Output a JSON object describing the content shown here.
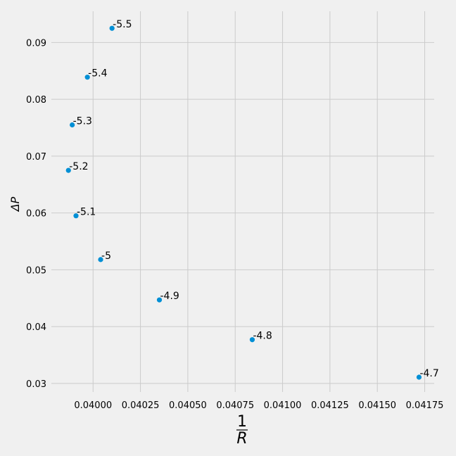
{
  "chart_data": {
    "type": "scatter",
    "xlabel": {
      "numerator": "1",
      "denominator": "R"
    },
    "ylabel": "ΔP",
    "xlim": [
      0.03978,
      0.0418
    ],
    "ylim": [
      0.0285,
      0.0955
    ],
    "grid": true,
    "x_ticks": [
      0.04,
      0.04025,
      0.0405,
      0.04075,
      0.041,
      0.04125,
      0.0415,
      0.04175
    ],
    "x_tick_labels": [
      "0.04000",
      "0.04025",
      "0.04050",
      "0.04075",
      "0.04100",
      "0.04125",
      "0.04150",
      "0.04175"
    ],
    "y_ticks": [
      0.03,
      0.04,
      0.05,
      0.06,
      0.07,
      0.08,
      0.09
    ],
    "y_tick_labels": [
      "0.03",
      "0.04",
      "0.05",
      "0.06",
      "0.07",
      "0.08",
      "0.09"
    ],
    "points": [
      {
        "x": 0.0401,
        "y": 0.0925,
        "label": "-5.5"
      },
      {
        "x": 0.03997,
        "y": 0.0839,
        "label": "-5.4"
      },
      {
        "x": 0.03989,
        "y": 0.0755,
        "label": "-5.3"
      },
      {
        "x": 0.03987,
        "y": 0.0675,
        "label": "-5.2"
      },
      {
        "x": 0.03991,
        "y": 0.0595,
        "label": "-5.1"
      },
      {
        "x": 0.04004,
        "y": 0.0518,
        "label": "-5"
      },
      {
        "x": 0.04035,
        "y": 0.0447,
        "label": "-4.9"
      },
      {
        "x": 0.04084,
        "y": 0.0377,
        "label": "-4.8"
      },
      {
        "x": 0.04172,
        "y": 0.0311,
        "label": "-4.7"
      }
    ],
    "colors": {
      "background": "#f0f0f0",
      "grid": "#cbcbcb",
      "marker": "#008fd5"
    }
  }
}
